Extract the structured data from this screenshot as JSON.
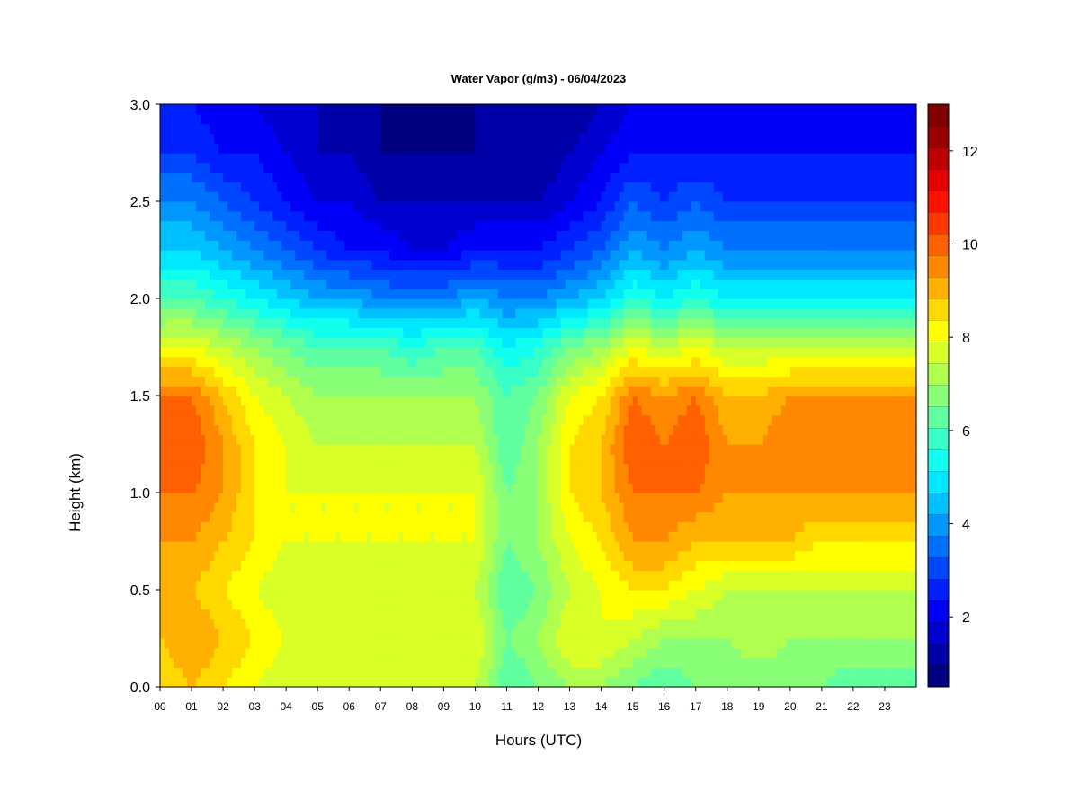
{
  "chart_data": {
    "type": "heatmap",
    "title": "Water Vapor (g/m3) - 06/04/2023",
    "xlabel": "Hours (UTC)",
    "ylabel": "Height (km)",
    "xlim": [
      0,
      24
    ],
    "ylim": [
      0,
      3.0
    ],
    "x_ticks": [
      "00",
      "01",
      "02",
      "03",
      "04",
      "05",
      "06",
      "07",
      "08",
      "09",
      "10",
      "11",
      "12",
      "13",
      "14",
      "15",
      "16",
      "17",
      "18",
      "19",
      "20",
      "21",
      "22",
      "23"
    ],
    "y_ticks": [
      "0.0",
      "0.5",
      "1.0",
      "1.5",
      "2.0",
      "2.5",
      "3.0"
    ],
    "colorbar": {
      "min": 0.5,
      "max": 13,
      "step": 0.5,
      "tick_labels": [
        "2",
        "4",
        "6",
        "8",
        "10",
        "12"
      ],
      "colors": [
        "#000080",
        "#0000A8",
        "#0000D0",
        "#0000F8",
        "#0020FF",
        "#0048FF",
        "#0070FF",
        "#0098FF",
        "#00C0FF",
        "#00E8FF",
        "#10FFEF",
        "#38FFC7",
        "#60FF9F",
        "#88FF77",
        "#B0FF4F",
        "#D8FF27",
        "#FFFF00",
        "#FFD800",
        "#FFB000",
        "#FF8800",
        "#FF6000",
        "#FF3800",
        "#FF1000",
        "#E80000",
        "#C00000",
        "#980000",
        "#800000"
      ]
    },
    "hours": [
      0,
      1,
      2,
      3,
      4,
      5,
      6,
      7,
      8,
      9,
      10,
      11,
      12,
      13,
      14,
      15,
      16,
      17,
      18,
      19,
      20,
      21,
      22,
      23
    ],
    "heights_km": [
      0.0,
      0.25,
      0.5,
      0.75,
      1.0,
      1.25,
      1.5,
      1.75,
      2.0,
      2.25,
      2.5,
      2.75,
      3.0
    ],
    "values_g_m3": [
      [
        9.0,
        9.5,
        9.0,
        8.5,
        8.0,
        8.0,
        8.0,
        8.0,
        8.0,
        8.0,
        8.0,
        6.5,
        7.0,
        7.5,
        7.5,
        7.0,
        6.5,
        7.0,
        7.0,
        7.0,
        7.0,
        7.0,
        6.5,
        6.5
      ],
      [
        9.5,
        10.0,
        9.5,
        9.0,
        8.5,
        8.5,
        8.5,
        8.5,
        8.5,
        8.5,
        8.5,
        7.0,
        7.5,
        8.5,
        8.5,
        8.0,
        7.5,
        7.5,
        7.5,
        8.0,
        7.5,
        7.5,
        7.5,
        7.5
      ],
      [
        9.5,
        9.5,
        9.0,
        8.5,
        8.0,
        8.0,
        8.0,
        8.0,
        8.0,
        8.0,
        8.0,
        6.5,
        7.0,
        8.0,
        8.5,
        9.0,
        9.0,
        8.5,
        8.0,
        8.0,
        8.0,
        8.0,
        8.0,
        8.0
      ],
      [
        10.0,
        10.0,
        9.5,
        9.0,
        8.5,
        8.5,
        8.5,
        8.5,
        8.5,
        8.5,
        8.5,
        7.0,
        7.5,
        8.5,
        9.0,
        10.0,
        10.0,
        9.5,
        9.5,
        9.5,
        9.5,
        9.0,
        9.0,
        9.0
      ],
      [
        10.5,
        10.5,
        10.0,
        9.0,
        8.5,
        8.5,
        8.5,
        8.5,
        8.5,
        8.5,
        8.5,
        7.0,
        7.5,
        9.0,
        9.5,
        10.5,
        10.5,
        10.5,
        10.0,
        10.0,
        10.0,
        10.0,
        10.0,
        10.0
      ],
      [
        11.0,
        11.0,
        10.0,
        9.0,
        8.5,
        8.0,
        8.0,
        8.0,
        8.0,
        8.0,
        8.0,
        6.5,
        7.5,
        9.0,
        9.5,
        11.0,
        10.5,
        11.0,
        10.0,
        10.0,
        10.5,
        10.5,
        10.5,
        10.5
      ],
      [
        10.5,
        10.5,
        9.5,
        8.5,
        8.0,
        7.5,
        7.5,
        7.5,
        7.5,
        7.5,
        7.5,
        6.5,
        7.0,
        8.5,
        9.0,
        10.5,
        10.0,
        10.5,
        9.5,
        9.5,
        10.0,
        10.0,
        10.0,
        10.0
      ],
      [
        8.5,
        8.5,
        8.0,
        7.5,
        7.0,
        6.5,
        6.5,
        6.5,
        6.0,
        6.5,
        6.5,
        5.5,
        6.0,
        7.0,
        7.5,
        8.5,
        8.0,
        8.5,
        8.0,
        8.0,
        8.0,
        8.0,
        8.0,
        8.0
      ],
      [
        6.5,
        6.5,
        6.0,
        5.5,
        5.0,
        4.5,
        4.5,
        4.0,
        4.0,
        4.0,
        4.5,
        4.0,
        4.0,
        4.5,
        5.0,
        6.0,
        5.5,
        6.0,
        5.5,
        5.5,
        5.5,
        5.5,
        5.5,
        5.5
      ],
      [
        5.0,
        5.0,
        4.5,
        4.0,
        3.5,
        3.0,
        2.5,
        2.5,
        2.0,
        2.0,
        2.5,
        2.5,
        2.5,
        3.0,
        3.5,
        4.5,
        4.0,
        4.5,
        4.0,
        4.0,
        4.0,
        4.0,
        4.0,
        4.0
      ],
      [
        4.0,
        4.0,
        3.5,
        3.0,
        2.5,
        2.0,
        2.0,
        1.5,
        1.5,
        1.5,
        1.5,
        1.5,
        1.5,
        2.0,
        2.5,
        3.5,
        3.0,
        3.5,
        3.0,
        3.0,
        3.0,
        3.0,
        3.0,
        3.0
      ],
      [
        3.0,
        3.0,
        2.5,
        2.5,
        2.0,
        1.5,
        1.5,
        1.0,
        1.0,
        1.0,
        1.0,
        1.0,
        1.0,
        1.5,
        2.0,
        2.5,
        2.5,
        2.5,
        2.5,
        2.5,
        2.5,
        2.5,
        2.5,
        2.5
      ],
      [
        2.5,
        2.5,
        2.0,
        2.0,
        1.5,
        1.5,
        1.0,
        1.0,
        0.8,
        0.8,
        1.0,
        1.0,
        1.0,
        1.0,
        1.5,
        2.0,
        2.0,
        2.0,
        2.0,
        2.0,
        2.0,
        2.0,
        2.0,
        2.0
      ]
    ]
  }
}
